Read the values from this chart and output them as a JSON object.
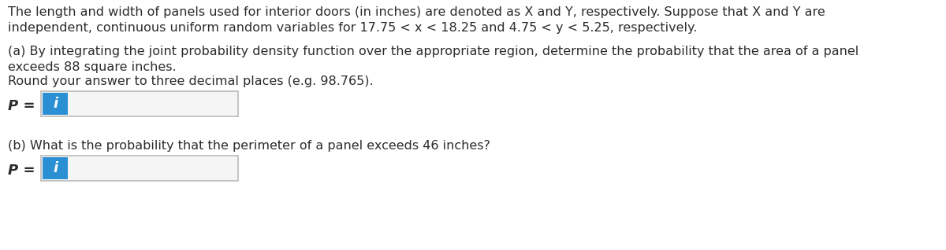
{
  "background_color": "#ffffff",
  "text_color": "#2c2c2c",
  "para1_line1": "The length and width of panels used for interior doors (in inches) are denoted as X and Y, respectively. Suppose that X and Y are",
  "para1_line2": "independent, continuous uniform random variables for 17.75 < x < 18.25 and 4.75 < y < 5.25, respectively.",
  "para2_line1": "(a) By integrating the joint probability density function over the appropriate region, determine the probability that the area of a panel",
  "para2_line2": "exceeds 88 square inches.",
  "para2_line3": "Round your answer to three decimal places (e.g. 98.765).",
  "label_a": "P =",
  "label_b": "P =",
  "para3_line1": "(b) What is the probability that the perimeter of a panel exceeds 46 inches?",
  "input_box_color": "#f5f5f5",
  "input_box_border": "#bbbbbb",
  "icon_color": "#2b8fd4",
  "icon_text": "i",
  "icon_text_color": "#ffffff",
  "font_size_main": 11.5,
  "font_size_label": 13
}
